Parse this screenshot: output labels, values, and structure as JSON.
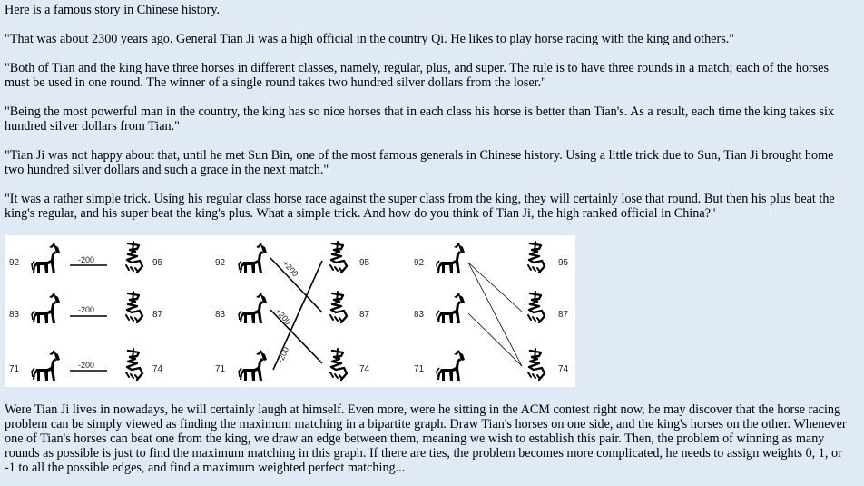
{
  "paragraphs": [
    "Here is a famous story in Chinese history.",
    "\"That was about 2300 years ago. General Tian Ji was a high official in the country Qi. He likes to play horse racing with the king and others.\"",
    "\"Both of Tian and the king have three horses in different classes, namely, regular, plus, and super. The rule is to have three rounds in a match; each of the horses must be used in one round. The winner of a single round takes two hundred silver dollars from the loser.\"",
    "\"Being the most powerful man in the country, the king has so nice horses that in each class his horse is better than Tian's. As a result, each time the king takes six hundred silver dollars from Tian.\"",
    "\"Tian Ji was not happy about that, until he met Sun Bin, one of the most famous generals in Chinese history. Using a little trick due to Sun, Tian Ji brought home two hundred silver dollars and such a grace in the next match.\"",
    "\"It was a rather simple trick. Using his regular class horse race against the super class from the king, they will certainly lose that round. But then his plus beat the king's regular, and his super beat the king's plus. What a simple trick. And how do you think of Tian Ji, the high ranked official in China?\"",
    "Were Tian Ji lives in nowadays, he will certainly laugh at himself. Even more, were he sitting in the ACM contest right now, he may discover that the horse racing problem can be simply viewed as finding the maximum matching in a bipartite graph. Draw Tian's horses on one side, and the king's horses on the other. Whenever one of Tian's horses can beat one from the king, we draw an edge between them, meaning we wish to establish this pair. Then, the problem of winning as many rounds as possible is just to find the maximum matching in this graph. If there are ties, the problem becomes more complicated, he needs to assign weights 0, 1, or -1 to all the possible edges, and find a maximum weighted perfect matching..."
  ],
  "figure": {
    "tian_speeds": [
      "92",
      "83",
      "71"
    ],
    "king_speeds": [
      "95",
      "87",
      "74"
    ],
    "panel1_weights": [
      "-200",
      "-200",
      "-200"
    ],
    "panel2_weights": [
      "+200",
      "+200",
      "-200"
    ]
  }
}
